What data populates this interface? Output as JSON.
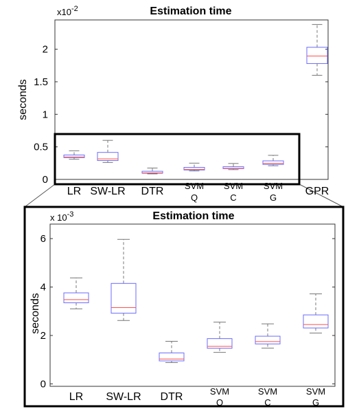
{
  "chart_data": [
    {
      "type": "boxplot",
      "title": "Estimation time",
      "ylabel": "seconds",
      "exponent_label": "x10",
      "exponent_value": "-2",
      "ylim": [
        0,
        2.45
      ],
      "yticks": [
        "0",
        "0.5",
        "1",
        "1.5",
        "2"
      ],
      "categories": [
        [
          "LR"
        ],
        [
          "SW-LR"
        ],
        [
          "DTR"
        ],
        [
          "SVM",
          "Q"
        ],
        [
          "SVM",
          "C"
        ],
        [
          "SVM",
          "G"
        ],
        [
          "GPR"
        ]
      ],
      "boxes": [
        {
          "whisker_low": 0.31,
          "q1": 0.335,
          "median": 0.345,
          "q3": 0.375,
          "whisker_high": 0.44
        },
        {
          "whisker_low": 0.26,
          "q1": 0.29,
          "median": 0.315,
          "q3": 0.415,
          "whisker_high": 0.6
        },
        {
          "whisker_low": 0.085,
          "q1": 0.095,
          "median": 0.1,
          "q3": 0.125,
          "whisker_high": 0.175
        },
        {
          "whisker_low": 0.13,
          "q1": 0.145,
          "median": 0.155,
          "q3": 0.185,
          "whisker_high": 0.25
        },
        {
          "whisker_low": 0.15,
          "q1": 0.165,
          "median": 0.17,
          "q3": 0.195,
          "whisker_high": 0.245
        },
        {
          "whisker_low": 0.21,
          "q1": 0.23,
          "median": 0.245,
          "q3": 0.285,
          "whisker_high": 0.37
        },
        {
          "whisker_low": 1.6,
          "q1": 1.78,
          "median": 1.895,
          "q3": 2.03,
          "whisker_high": 2.38
        }
      ]
    },
    {
      "type": "boxplot",
      "title": "Estimation time",
      "ylabel": "seconds",
      "exponent_label": "x 10",
      "exponent_value": "-3",
      "ylim": [
        -0.1,
        6.6
      ],
      "yticks": [
        "0",
        "2",
        "4",
        "6"
      ],
      "categories": [
        [
          "LR"
        ],
        [
          "SW-LR"
        ],
        [
          "DTR"
        ],
        [
          "SVM",
          "Q"
        ],
        [
          "SVM",
          "C"
        ],
        [
          "SVM",
          "G"
        ]
      ],
      "boxes": [
        {
          "whisker_low": 3.1,
          "q1": 3.35,
          "median": 3.48,
          "q3": 3.76,
          "whisker_high": 4.38
        },
        {
          "whisker_low": 2.62,
          "q1": 2.92,
          "median": 3.15,
          "q3": 4.15,
          "whisker_high": 5.97
        },
        {
          "whisker_low": 0.88,
          "q1": 0.95,
          "median": 1.03,
          "q3": 1.28,
          "whisker_high": 1.76
        },
        {
          "whisker_low": 1.3,
          "q1": 1.47,
          "median": 1.55,
          "q3": 1.87,
          "whisker_high": 2.55
        },
        {
          "whisker_low": 1.48,
          "q1": 1.65,
          "median": 1.75,
          "q3": 1.97,
          "whisker_high": 2.48
        },
        {
          "whisker_low": 2.1,
          "q1": 2.31,
          "median": 2.45,
          "q3": 2.85,
          "whisker_high": 3.72
        }
      ]
    }
  ],
  "colors": {
    "box": "#6b6bff",
    "median": "#ff4f4f",
    "whisker": "#777777",
    "axis": "#333333",
    "frame": "#000000"
  }
}
